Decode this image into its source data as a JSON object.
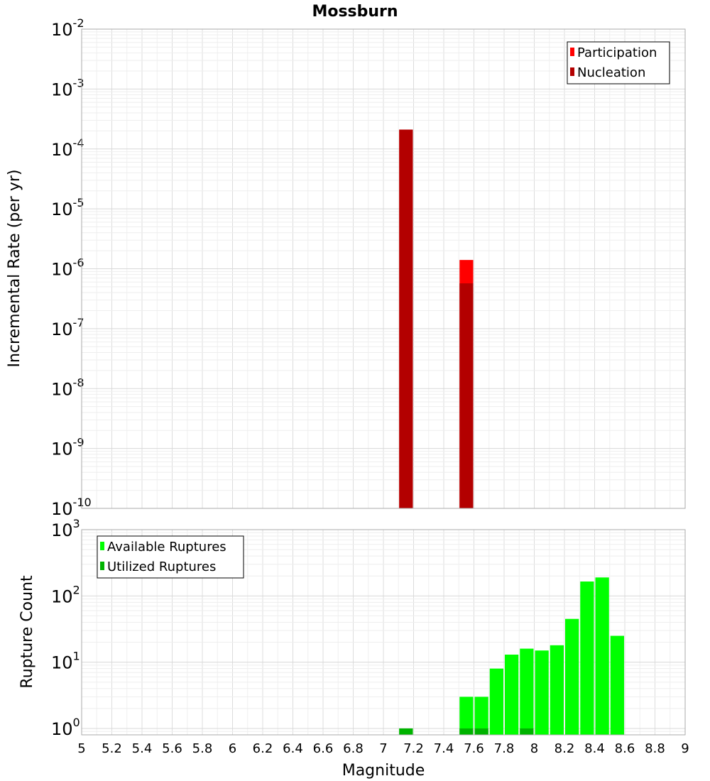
{
  "chart_data": {
    "title": "Mossburn",
    "xlabel": "Magnitude",
    "xlim": [
      5,
      9
    ],
    "x_ticks": [
      "5",
      "5.2",
      "5.4",
      "5.6",
      "5.8",
      "6",
      "6.2",
      "6.4",
      "6.6",
      "6.8",
      "7",
      "7.2",
      "7.4",
      "7.6",
      "7.8",
      "8",
      "8.2",
      "8.4",
      "8.6",
      "8.8",
      "9"
    ],
    "charts": [
      {
        "type": "bar",
        "ylabel": "Incremental Rate (per yr)",
        "yscale": "log",
        "ylim": [
          1e-10,
          0.01
        ],
        "y_ticks": [
          {
            "base": "10",
            "exp": "-10"
          },
          {
            "base": "10",
            "exp": "-9"
          },
          {
            "base": "10",
            "exp": "-8"
          },
          {
            "base": "10",
            "exp": "-7"
          },
          {
            "base": "10",
            "exp": "-6"
          },
          {
            "base": "10",
            "exp": "-5"
          },
          {
            "base": "10",
            "exp": "-4"
          },
          {
            "base": "10",
            "exp": "-3"
          },
          {
            "base": "10",
            "exp": "-2"
          }
        ],
        "bar_width": 0.1,
        "legend_position": "top-right",
        "grid": true,
        "series": [
          {
            "name": "Participation",
            "color": "#ff0000",
            "x": [
              7.15,
              7.55
            ],
            "values": [
              0.00021,
              1.4e-06
            ]
          },
          {
            "name": "Nucleation",
            "color": "#b30000",
            "x": [
              7.15,
              7.55
            ],
            "values": [
              0.00021,
              5.7e-07
            ]
          }
        ]
      },
      {
        "type": "bar",
        "ylabel": "Rupture Count",
        "yscale": "log",
        "ylim": [
          0.8,
          1000
        ],
        "y_ticks": [
          {
            "base": "10",
            "exp": "0"
          },
          {
            "base": "10",
            "exp": "1"
          },
          {
            "base": "10",
            "exp": "2"
          },
          {
            "base": "10",
            "exp": "3"
          }
        ],
        "bar_width": 0.1,
        "legend_position": "top-left",
        "grid": true,
        "series": [
          {
            "name": "Available Ruptures",
            "color": "#00ff00",
            "x": [
              7.15,
              7.55,
              7.65,
              7.75,
              7.85,
              7.95,
              8.05,
              8.15,
              8.25,
              8.35,
              8.45,
              8.55
            ],
            "values": [
              1,
              3,
              3,
              8,
              13,
              16,
              15,
              18,
              45,
              165,
              190,
              25
            ]
          },
          {
            "name": "Utilized Ruptures",
            "color": "#00b300",
            "x": [
              7.15,
              7.55,
              7.65,
              7.95
            ],
            "values": [
              1,
              1,
              1,
              1
            ]
          }
        ]
      }
    ]
  }
}
